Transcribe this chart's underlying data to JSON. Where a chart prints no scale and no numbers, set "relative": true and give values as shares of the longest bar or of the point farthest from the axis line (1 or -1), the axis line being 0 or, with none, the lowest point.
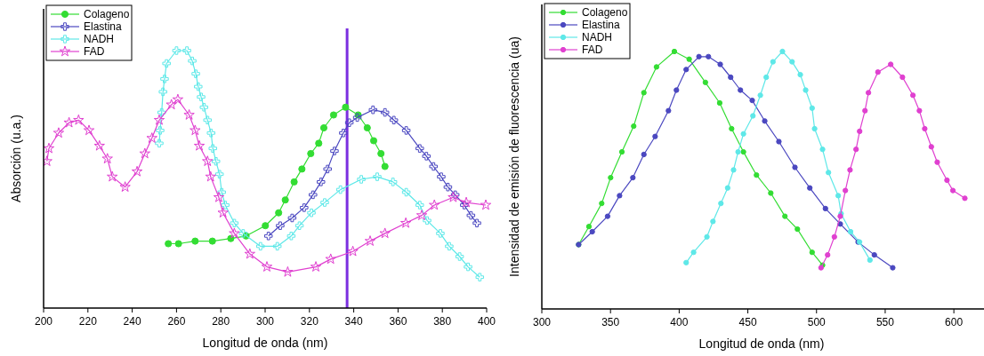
{
  "chart_data": [
    {
      "type": "line",
      "relative": true,
      "xlabel": "Longitud de onda (nm)",
      "ylabel": "Absorción (u.a.)",
      "xlim": [
        200,
        400
      ],
      "xticks": [
        200,
        220,
        240,
        260,
        280,
        300,
        320,
        340,
        360,
        380,
        400
      ],
      "legend": "top left",
      "grid": false,
      "line_style": "solid",
      "ref_lines": [
        {
          "axis": "x",
          "value": 337,
          "color": "#7b2fe0"
        }
      ],
      "series": [
        {
          "name": "Colageno",
          "color": "#33dd33",
          "marker": "circle",
          "x": [
            256.3,
            260.9,
            268.4,
            276.2,
            284.5,
            291.4,
            300.1,
            306.1,
            309.1,
            313.1,
            316.6,
            320.6,
            324.2,
            326.5,
            330.9,
            336.3,
            342,
            346.1,
            349,
            352.3,
            354.1
          ],
          "values": [
            0.25,
            0.25,
            0.26,
            0.26,
            0.27,
            0.28,
            0.32,
            0.37,
            0.42,
            0.49,
            0.54,
            0.6,
            0.64,
            0.7,
            0.75,
            0.78,
            0.75,
            0.7,
            0.65,
            0.6,
            0.55
          ]
        },
        {
          "name": "Elastina",
          "color": "#4b48c0",
          "marker": "cross",
          "x": [
            301.5,
            306.8,
            312.2,
            317.6,
            321.6,
            325.2,
            328.2,
            331.3,
            335.3,
            338,
            341.6,
            348.7,
            354.1,
            358.1,
            363.7,
            369.8,
            372.8,
            376,
            379.5,
            382.5,
            385.8,
            389.9,
            392.9,
            395.6
          ],
          "values": [
            0.28,
            0.32,
            0.35,
            0.39,
            0.44,
            0.49,
            0.54,
            0.61,
            0.68,
            0.72,
            0.74,
            0.77,
            0.76,
            0.73,
            0.69,
            0.62,
            0.59,
            0.55,
            0.51,
            0.47,
            0.44,
            0.4,
            0.36,
            0.33
          ]
        },
        {
          "name": "NADH",
          "color": "#5ee8e8",
          "marker": "cross",
          "x": [
            252.2,
            252.6,
            253.3,
            253.9,
            254.6,
            255.5,
            260,
            264.7,
            267.1,
            268.7,
            269.8,
            271.1,
            272.4,
            274,
            275.6,
            276.4,
            277.8,
            279.4,
            280.4,
            282,
            286.1,
            290.1,
            297.9,
            305.5,
            311.8,
            315.5,
            320.9,
            326.9,
            334,
            343.4,
            350.6,
            357.7,
            363.7,
            369.8,
            373.1,
            379.1,
            383.1,
            387.8,
            391.6,
            396.9
          ],
          "values": [
            0.64,
            0.69,
            0.76,
            0.84,
            0.89,
            0.95,
            1,
            1,
            0.96,
            0.91,
            0.86,
            0.82,
            0.78,
            0.73,
            0.68,
            0.62,
            0.57,
            0.52,
            0.45,
            0.4,
            0.33,
            0.29,
            0.24,
            0.24,
            0.28,
            0.32,
            0.37,
            0.41,
            0.46,
            0.5,
            0.51,
            0.49,
            0.45,
            0.4,
            0.34,
            0.29,
            0.24,
            0.2,
            0.16,
            0.12
          ]
        },
        {
          "name": "FAD",
          "color": "#e040d0",
          "marker": "star",
          "x": [
            201.5,
            202.4,
            206.8,
            211.5,
            215.8,
            220.5,
            225.2,
            228.8,
            231,
            236.8,
            242.2,
            245.7,
            248.9,
            252.2,
            257.7,
            260.6,
            265.7,
            268.4,
            270.3,
            274,
            275.4,
            279.1,
            281,
            286.1,
            293.1,
            300.8,
            310.2,
            322.9,
            329.6,
            339.6,
            347.4,
            354.1,
            363.5,
            370.7,
            376.4,
            384.9,
            390.8,
            399.6
          ],
          "values": [
            0.57,
            0.62,
            0.68,
            0.72,
            0.73,
            0.69,
            0.63,
            0.58,
            0.51,
            0.47,
            0.53,
            0.6,
            0.66,
            0.73,
            0.79,
            0.81,
            0.75,
            0.69,
            0.63,
            0.57,
            0.51,
            0.43,
            0.37,
            0.29,
            0.21,
            0.16,
            0.14,
            0.16,
            0.19,
            0.22,
            0.26,
            0.29,
            0.33,
            0.36,
            0.4,
            0.43,
            0.41,
            0.4
          ]
        }
      ]
    },
    {
      "type": "line",
      "relative": true,
      "xlabel": "Longitud de onda (nm)",
      "ylabel": "Intensidad de emisión de fluorescencia  (ua)",
      "xlim": [
        300,
        620
      ],
      "xticks": [
        300,
        350,
        400,
        450,
        500,
        550,
        600
      ],
      "legend": "top left",
      "grid": false,
      "line_style": "solid",
      "series": [
        {
          "name": "Colageno",
          "color": "#33dd33",
          "marker": "circle",
          "x": [
            326.8,
            334.3,
            343.6,
            350.1,
            358.3,
            366.9,
            374.3,
            383.5,
            396.5,
            407.3,
            419.1,
            429.5,
            438.2,
            446.8,
            456.3,
            466.7,
            477,
            486.1,
            496.8,
            504.4
          ],
          "values": [
            0.25,
            0.32,
            0.41,
            0.51,
            0.61,
            0.71,
            0.84,
            0.94,
            1,
            0.97,
            0.88,
            0.8,
            0.7,
            0.61,
            0.52,
            0.45,
            0.36,
            0.31,
            0.22,
            0.17
          ]
        },
        {
          "name": "Elastina",
          "color": "#4b48c0",
          "marker": "circle",
          "x": [
            326.8,
            336.7,
            347.9,
            356.6,
            366.3,
            374.3,
            382.5,
            392.2,
            398,
            405.1,
            414.4,
            421.3,
            429.9,
            437.5,
            444.6,
            453.2,
            462.3,
            472.6,
            484.3,
            495.1,
            506.5,
            517.3,
            530.3,
            542.1,
            555.5
          ],
          "values": [
            0.25,
            0.3,
            0.36,
            0.44,
            0.51,
            0.6,
            0.67,
            0.77,
            0.85,
            0.93,
            0.98,
            0.98,
            0.95,
            0.9,
            0.85,
            0.81,
            0.73,
            0.65,
            0.55,
            0.47,
            0.39,
            0.33,
            0.26,
            0.21,
            0.16
          ]
        },
        {
          "name": "NADH",
          "color": "#5ee8e8",
          "marker": "circle",
          "x": [
            405.1,
            410.5,
            420.2,
            424.6,
            430.4,
            435.3,
            439.6,
            442.9,
            446.8,
            453.7,
            459.1,
            463.4,
            468.3,
            475.2,
            482.2,
            488.2,
            492.1,
            496.8,
            498.6,
            504.4,
            508.7,
            515.8,
            517.9,
            524.8,
            531.3,
            538.9
          ],
          "values": [
            0.18,
            0.22,
            0.28,
            0.34,
            0.41,
            0.47,
            0.54,
            0.61,
            0.68,
            0.75,
            0.83,
            0.9,
            0.96,
            1,
            0.96,
            0.91,
            0.85,
            0.78,
            0.7,
            0.62,
            0.53,
            0.44,
            0.37,
            0.3,
            0.26,
            0.19
          ]
        },
        {
          "name": "FAD",
          "color": "#e040d0",
          "marker": "circle",
          "x": [
            503.3,
            508.1,
            513,
            517.3,
            521,
            524.4,
            528.8,
            531.4,
            535.3,
            537.8,
            544.7,
            554,
            562.6,
            570.2,
            574.9,
            578.8,
            583.6,
            587.9,
            595,
            599.3,
            608
          ],
          "values": [
            0.16,
            0.21,
            0.28,
            0.36,
            0.46,
            0.54,
            0.62,
            0.69,
            0.77,
            0.84,
            0.92,
            0.95,
            0.9,
            0.83,
            0.77,
            0.7,
            0.63,
            0.57,
            0.5,
            0.46,
            0.43
          ]
        }
      ]
    }
  ]
}
